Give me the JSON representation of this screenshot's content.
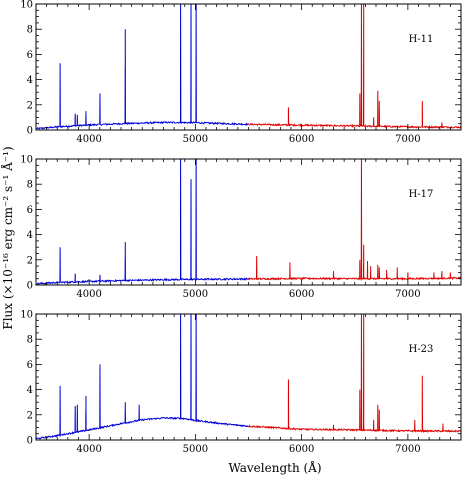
{
  "chart_data": {
    "type": "line",
    "shared": {
      "xlabel": "Wavelength (Å)",
      "ylabel": "Flux (×10⁻¹⁶ erg cm⁻² s⁻¹ Å⁻¹)",
      "xlim": [
        3500,
        7500
      ],
      "ylim": [
        0,
        10
      ],
      "x_ticks": [
        4000,
        5000,
        6000,
        7000
      ],
      "x_tick_labels": [
        "4000",
        "5000",
        "6000",
        "7000"
      ],
      "y_ticks": [
        0,
        2,
        4,
        6,
        8,
        10
      ],
      "y_tick_labels": [
        "0",
        "2",
        "4",
        "6",
        "8",
        "10"
      ],
      "colors": {
        "blue_arm": "#0000d8",
        "red_arm": "#e00000"
      },
      "split_wavelength": 5500
    },
    "panels": [
      {
        "label": "H-11",
        "continuum": [
          [
            3500,
            0.1
          ],
          [
            3700,
            0.25
          ],
          [
            4000,
            0.4
          ],
          [
            4300,
            0.5
          ],
          [
            4700,
            0.6
          ],
          [
            5000,
            0.58
          ],
          [
            5500,
            0.45
          ],
          [
            6000,
            0.38
          ],
          [
            6500,
            0.32
          ],
          [
            7000,
            0.25
          ],
          [
            7500,
            0.22
          ]
        ],
        "lines": [
          {
            "x": 3727,
            "peak": 5.3
          },
          {
            "x": 3869,
            "peak": 1.3
          },
          {
            "x": 3889,
            "peak": 1.2
          },
          {
            "x": 3970,
            "peak": 1.5
          },
          {
            "x": 4102,
            "peak": 2.9
          },
          {
            "x": 4340,
            "peak": 8.0
          },
          {
            "x": 4861,
            "peak": 10.5
          },
          {
            "x": 4959,
            "peak": 10.5
          },
          {
            "x": 5007,
            "peak": 10.5
          },
          {
            "x": 5876,
            "peak": 1.8
          },
          {
            "x": 6548,
            "peak": 2.9
          },
          {
            "x": 6563,
            "peak": 10.5
          },
          {
            "x": 6584,
            "peak": 10.5
          },
          {
            "x": 6678,
            "peak": 1.0
          },
          {
            "x": 6717,
            "peak": 3.1
          },
          {
            "x": 6731,
            "peak": 2.3
          },
          {
            "x": 7136,
            "peak": 2.3
          },
          {
            "x": 7320,
            "peak": 0.6
          }
        ]
      },
      {
        "label": "H-17",
        "continuum": [
          [
            3500,
            0.1
          ],
          [
            3700,
            0.2
          ],
          [
            4000,
            0.28
          ],
          [
            4300,
            0.35
          ],
          [
            4700,
            0.42
          ],
          [
            5000,
            0.45
          ],
          [
            5500,
            0.48
          ],
          [
            6000,
            0.52
          ],
          [
            6500,
            0.5
          ],
          [
            7000,
            0.5
          ],
          [
            7500,
            0.55
          ]
        ],
        "lines": [
          {
            "x": 3727,
            "peak": 3.0
          },
          {
            "x": 3869,
            "peak": 0.9
          },
          {
            "x": 4102,
            "peak": 0.8
          },
          {
            "x": 4340,
            "peak": 3.4
          },
          {
            "x": 4861,
            "peak": 10.5
          },
          {
            "x": 4959,
            "peak": 8.4
          },
          {
            "x": 5007,
            "peak": 10.5
          },
          {
            "x": 5577,
            "peak": 2.3
          },
          {
            "x": 5890,
            "peak": 1.8
          },
          {
            "x": 6300,
            "peak": 1.1
          },
          {
            "x": 6548,
            "peak": 2.0
          },
          {
            "x": 6563,
            "peak": 10.5
          },
          {
            "x": 6584,
            "peak": 3.2
          },
          {
            "x": 6620,
            "peak": 1.9
          },
          {
            "x": 6650,
            "peak": 1.5
          },
          {
            "x": 6717,
            "peak": 1.6
          },
          {
            "x": 6731,
            "peak": 1.4
          },
          {
            "x": 6800,
            "peak": 1.2
          },
          {
            "x": 6900,
            "peak": 1.4
          },
          {
            "x": 7000,
            "peak": 1.0
          },
          {
            "x": 7245,
            "peak": 1.0
          },
          {
            "x": 7320,
            "peak": 1.1
          },
          {
            "x": 7400,
            "peak": 1.0
          }
        ]
      },
      {
        "label": "H-23",
        "continuum": [
          [
            3500,
            0.1
          ],
          [
            3700,
            0.35
          ],
          [
            4000,
            0.8
          ],
          [
            4300,
            1.3
          ],
          [
            4500,
            1.6
          ],
          [
            4700,
            1.75
          ],
          [
            4900,
            1.7
          ],
          [
            5000,
            1.55
          ],
          [
            5300,
            1.25
          ],
          [
            5500,
            1.1
          ],
          [
            5800,
            0.95
          ],
          [
            6000,
            0.85
          ],
          [
            6500,
            0.8
          ],
          [
            7000,
            0.72
          ],
          [
            7500,
            0.7
          ]
        ],
        "lines": [
          {
            "x": 3727,
            "peak": 4.3
          },
          {
            "x": 3869,
            "peak": 2.7
          },
          {
            "x": 3889,
            "peak": 2.8
          },
          {
            "x": 3970,
            "peak": 3.5
          },
          {
            "x": 4102,
            "peak": 6.0
          },
          {
            "x": 4340,
            "peak": 3.0
          },
          {
            "x": 4471,
            "peak": 2.8
          },
          {
            "x": 4861,
            "peak": 10.5
          },
          {
            "x": 4959,
            "peak": 10.5
          },
          {
            "x": 5007,
            "peak": 10.5
          },
          {
            "x": 5876,
            "peak": 4.8
          },
          {
            "x": 6300,
            "peak": 1.2
          },
          {
            "x": 6548,
            "peak": 4.0
          },
          {
            "x": 6563,
            "peak": 10.5
          },
          {
            "x": 6584,
            "peak": 10.5
          },
          {
            "x": 6678,
            "peak": 1.6
          },
          {
            "x": 6717,
            "peak": 2.8
          },
          {
            "x": 6731,
            "peak": 2.4
          },
          {
            "x": 7065,
            "peak": 1.6
          },
          {
            "x": 7136,
            "peak": 5.1
          },
          {
            "x": 7330,
            "peak": 1.3
          }
        ]
      }
    ]
  }
}
